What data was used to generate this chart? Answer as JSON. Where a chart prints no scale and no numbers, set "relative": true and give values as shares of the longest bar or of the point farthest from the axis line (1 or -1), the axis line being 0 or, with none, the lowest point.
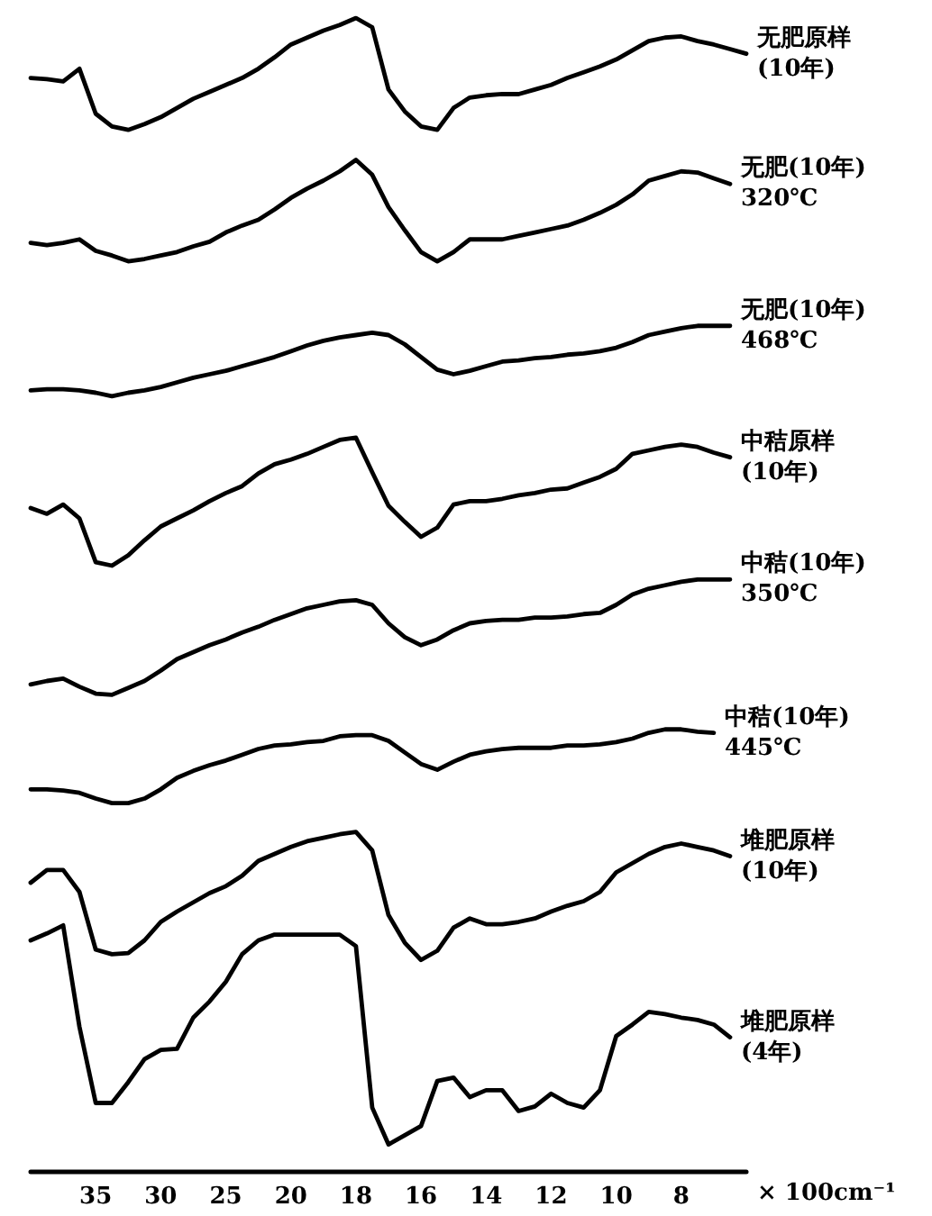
{
  "chart_data": {
    "type": "line",
    "relative": true,
    "marker": "none",
    "xlabel": "× 100cm⁻¹",
    "categories": [
      null,
      null,
      null,
      null,
      "35",
      null,
      null,
      null,
      "30",
      null,
      null,
      null,
      "25",
      null,
      null,
      null,
      "20",
      null,
      null,
      null,
      "18",
      null,
      null,
      null,
      "16",
      null,
      null,
      null,
      "14",
      null,
      null,
      null,
      "12",
      null,
      null,
      null,
      "10",
      null,
      null,
      null,
      "8",
      null,
      null,
      null,
      null
    ],
    "series": [
      {
        "name": "无肥原样\n(10年)",
        "color": "#000000",
        "values": [
          0.948,
          0.947,
          0.945,
          0.956,
          0.917,
          0.906,
          0.903,
          0.908,
          0.914,
          0.922,
          0.93,
          0.936,
          0.942,
          0.948,
          0.956,
          0.966,
          0.977,
          0.983,
          0.989,
          0.994,
          1,
          0.992,
          0.938,
          0.919,
          0.906,
          0.903,
          0.922,
          0.931,
          0.933,
          0.934,
          0.934,
          0.938,
          0.942,
          0.948,
          0.953,
          0.958,
          0.964,
          0.972,
          0.98,
          0.983,
          0.984,
          0.98,
          0.977,
          0.973,
          0.969
        ]
      },
      {
        "name": "无肥(10年)\n320℃",
        "color": "#000000",
        "values": [
          0.805,
          0.803,
          0.805,
          0.808,
          0.798,
          0.794,
          0.789,
          0.791,
          0.794,
          0.797,
          0.802,
          0.806,
          0.814,
          0.82,
          0.825,
          0.834,
          0.844,
          0.852,
          0.859,
          0.867,
          0.877,
          0.864,
          0.836,
          0.816,
          0.797,
          0.789,
          0.797,
          0.808,
          0.808,
          0.808,
          0.811,
          0.814,
          0.817,
          0.82,
          0.825,
          0.831,
          0.838,
          0.847,
          0.859,
          0.863,
          0.867,
          0.866,
          0.861,
          0.856,
          null
        ]
      },
      {
        "name": "无肥(10年)\n468℃",
        "color": "#000000",
        "values": [
          0.677,
          0.678,
          0.678,
          0.677,
          0.675,
          0.672,
          0.675,
          0.677,
          0.68,
          0.684,
          0.688,
          0.691,
          0.694,
          0.698,
          0.702,
          0.706,
          0.711,
          0.716,
          0.72,
          0.723,
          0.725,
          0.727,
          0.725,
          0.717,
          0.706,
          0.695,
          0.691,
          0.694,
          0.698,
          0.702,
          0.703,
          0.705,
          0.706,
          0.708,
          0.709,
          0.711,
          0.714,
          0.719,
          0.725,
          0.728,
          0.731,
          0.733,
          0.733,
          0.733,
          null
        ]
      },
      {
        "name": "中秸原样\n(10年)",
        "color": "#000000",
        "values": [
          0.575,
          0.57,
          0.578,
          0.566,
          0.528,
          0.525,
          0.534,
          0.547,
          0.559,
          0.566,
          0.573,
          0.581,
          0.588,
          0.594,
          0.605,
          0.613,
          0.617,
          0.622,
          0.628,
          0.634,
          0.636,
          0.606,
          0.577,
          0.563,
          0.55,
          0.558,
          0.578,
          0.581,
          0.581,
          0.583,
          0.586,
          0.588,
          0.591,
          0.592,
          0.597,
          0.602,
          0.609,
          0.622,
          0.625,
          0.628,
          0.63,
          0.628,
          0.623,
          0.619,
          null
        ]
      },
      {
        "name": "中秸(10年)\n350℃",
        "color": "#000000",
        "values": [
          0.422,
          0.425,
          0.427,
          0.42,
          0.414,
          0.413,
          0.419,
          0.425,
          0.434,
          0.444,
          0.45,
          0.456,
          0.461,
          0.467,
          0.472,
          0.478,
          0.483,
          0.488,
          0.491,
          0.494,
          0.495,
          0.491,
          0.475,
          0.463,
          0.456,
          0.461,
          0.469,
          0.475,
          0.477,
          0.478,
          0.478,
          0.48,
          0.48,
          0.481,
          0.483,
          0.484,
          0.491,
          0.5,
          0.505,
          0.508,
          0.511,
          0.513,
          0.513,
          0.513,
          null
        ]
      },
      {
        "name": "中秸(10年)\n445℃",
        "color": "#000000",
        "values": [
          0.331,
          0.331,
          0.33,
          0.328,
          0.323,
          0.319,
          0.319,
          0.323,
          0.331,
          0.341,
          0.347,
          0.352,
          0.356,
          0.361,
          0.366,
          0.369,
          0.37,
          0.372,
          0.373,
          0.377,
          0.378,
          0.378,
          0.373,
          0.363,
          0.353,
          0.348,
          0.355,
          0.361,
          0.364,
          0.366,
          0.367,
          0.367,
          0.367,
          0.369,
          0.369,
          0.37,
          0.372,
          0.375,
          0.38,
          0.383,
          0.383,
          0.381,
          0.38,
          null,
          null
        ]
      },
      {
        "name": "堆肥原样\n(10年)",
        "color": "#000000",
        "values": [
          0.25,
          0.261,
          0.261,
          0.242,
          0.192,
          0.188,
          0.189,
          0.2,
          0.216,
          0.225,
          0.233,
          0.241,
          0.247,
          0.256,
          0.269,
          0.275,
          0.281,
          0.286,
          0.289,
          0.292,
          0.294,
          0.278,
          0.222,
          0.198,
          0.183,
          0.191,
          0.211,
          0.219,
          0.214,
          0.214,
          0.216,
          0.219,
          0.225,
          0.23,
          0.234,
          0.242,
          0.259,
          0.267,
          0.275,
          0.281,
          0.284,
          0.281,
          0.278,
          0.273,
          null
        ]
      },
      {
        "name": "堆肥原样\n(4年)",
        "color": "#000000",
        "values": [
          0.2,
          0.206,
          0.213,
          0.125,
          0.059,
          0.059,
          0.077,
          0.097,
          0.105,
          0.106,
          0.133,
          0.147,
          0.164,
          0.188,
          0.2,
          0.205,
          0.205,
          0.205,
          0.205,
          0.205,
          0.195,
          0.055,
          0.023,
          0.031,
          0.039,
          0.078,
          0.081,
          0.064,
          0.07,
          0.07,
          0.052,
          0.056,
          0.067,
          0.059,
          0.055,
          0.07,
          0.117,
          0.127,
          0.138,
          0.136,
          0.133,
          0.131,
          0.127,
          0.116,
          null
        ]
      }
    ]
  }
}
